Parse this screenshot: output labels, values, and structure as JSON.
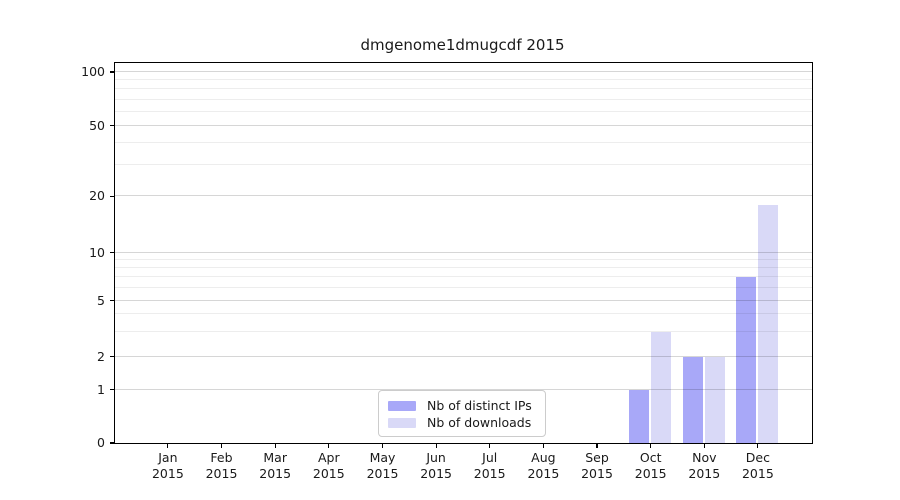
{
  "figure": {
    "background": "#ffffff"
  },
  "chart_data": {
    "type": "bar",
    "title": "dmgenome1dmugcdf 2015",
    "categories": [
      "Jan 2015",
      "Feb 2015",
      "Mar 2015",
      "Apr 2015",
      "May 2015",
      "Jun 2015",
      "Jul 2015",
      "Aug 2015",
      "Sep 2015",
      "Oct 2015",
      "Nov 2015",
      "Dec 2015"
    ],
    "series": [
      {
        "name": "Nb of distinct IPs",
        "color": "#a8a8f8",
        "values": [
          0,
          0,
          0,
          0,
          0,
          0,
          0,
          0,
          0,
          1,
          2,
          7
        ]
      },
      {
        "name": "Nb of downloads",
        "color": "#d9d9f7",
        "values": [
          0,
          0,
          0,
          0,
          0,
          0,
          0,
          0,
          0,
          3,
          2,
          18
        ]
      }
    ],
    "xlabel": "",
    "ylabel": "",
    "yticks": [
      0,
      1,
      2,
      5,
      10,
      20,
      50,
      100
    ],
    "minor_yticks": [
      3,
      4,
      6,
      7,
      8,
      9,
      30,
      40,
      60,
      70,
      80,
      90
    ],
    "scale": "symlog",
    "ylim": [
      0,
      105
    ],
    "grid": true,
    "grid_above_bars": true,
    "legend_position": "lower center"
  },
  "colors": {
    "grid_major": "rgba(0,0,0,0.16)",
    "grid_minor": "rgba(0,0,0,0.07)",
    "spine": "#000000",
    "text": "#1a1a1a",
    "legend_border": "#cccccc",
    "legend_background": "rgba(255,255,255,0.8)"
  }
}
